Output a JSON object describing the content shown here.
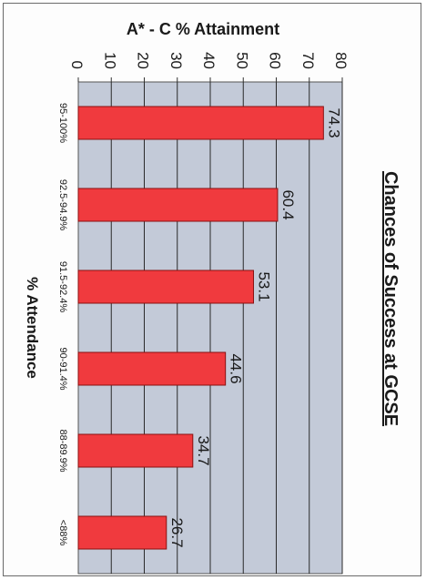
{
  "chart_data": {
    "type": "bar",
    "orientation": "horizontal-rotated",
    "title": "Chances of Success at GCSE",
    "value_axis_label": "A* - C % Attainment",
    "category_axis_label": "% Attendance",
    "categories": [
      "95-100%",
      "92.5-94.9%",
      "91.5-92.4%",
      "90-91.4%",
      "88-89.9%",
      "<88%"
    ],
    "values": [
      74.3,
      60.4,
      53.1,
      44.6,
      34.7,
      26.7
    ],
    "data_labels": [
      "74.3",
      "60.4",
      "53.1",
      "44.6",
      "34.7",
      "26.7"
    ],
    "ticks": [
      "0",
      "10",
      "20",
      "30",
      "40",
      "50",
      "60",
      "70",
      "80"
    ],
    "ylim": [
      0,
      80
    ],
    "grid": true,
    "legend": "none"
  },
  "colors": {
    "bar_fill": "#f03a3e",
    "bar_edge": "#8a1010",
    "plot_bg": "#c3cad8",
    "gridline": "#2a2a2a",
    "text": "#1a1a1a"
  }
}
